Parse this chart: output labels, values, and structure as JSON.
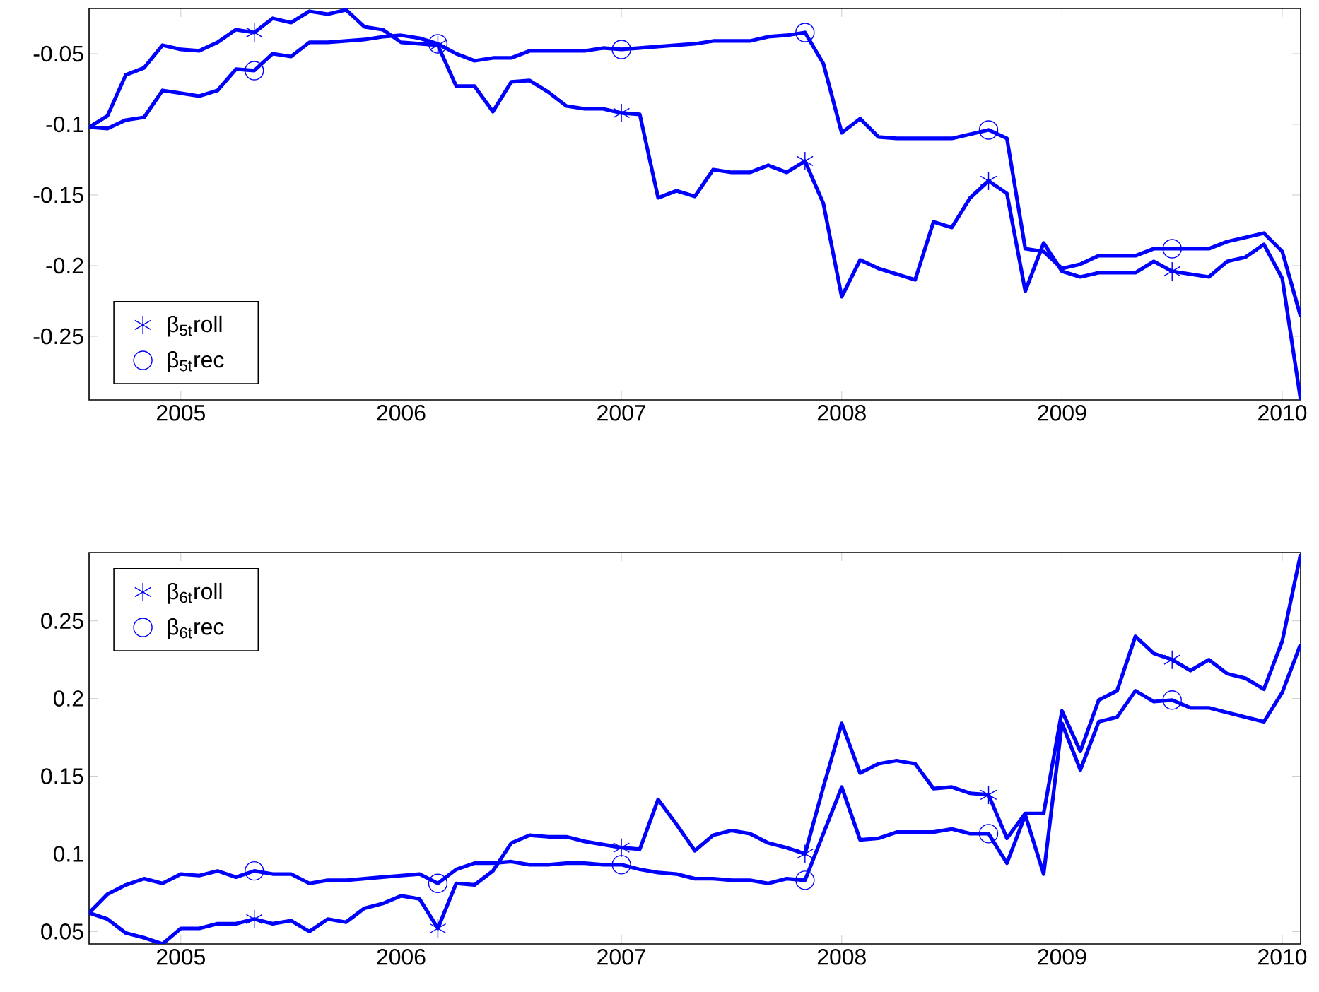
{
  "chart_data": [
    {
      "type": "line",
      "x": [
        "2004-08",
        "2004-09",
        "2004-10",
        "2004-11",
        "2004-12",
        "2005-01",
        "2005-02",
        "2005-03",
        "2005-04",
        "2005-05",
        "2005-06",
        "2005-07",
        "2005-08",
        "2005-09",
        "2005-10",
        "2005-11",
        "2005-12",
        "2006-01",
        "2006-02",
        "2006-03",
        "2006-04",
        "2006-05",
        "2006-06",
        "2006-07",
        "2006-08",
        "2006-09",
        "2006-10",
        "2006-11",
        "2006-12",
        "2007-01",
        "2007-02",
        "2007-03",
        "2007-04",
        "2007-05",
        "2007-06",
        "2007-07",
        "2007-08",
        "2007-09",
        "2007-10",
        "2007-11",
        "2007-12",
        "2008-01",
        "2008-02",
        "2008-03",
        "2008-04",
        "2008-05",
        "2008-06",
        "2008-07",
        "2008-08",
        "2008-09",
        "2008-10",
        "2008-11",
        "2008-12",
        "2009-01",
        "2009-02",
        "2009-03",
        "2009-04",
        "2009-05",
        "2009-06",
        "2009-07",
        "2009-08",
        "2009-09",
        "2009-10",
        "2009-11",
        "2009-12",
        "2010-01",
        "2010-02"
      ],
      "xlim": [
        "2004-08",
        "2010-02"
      ],
      "xticks": [
        "2005",
        "2006",
        "2007",
        "2008",
        "2009",
        "2010"
      ],
      "ylim": [
        -0.295,
        -0.018
      ],
      "yticks": [
        -0.25,
        -0.2,
        -0.15,
        -0.1,
        -0.05
      ],
      "legend": "bottom left",
      "series": [
        {
          "color": "#0000ff",
          "values": [
            -0.102,
            -0.094,
            -0.065,
            -0.06,
            -0.044,
            -0.047,
            -0.048,
            -0.042,
            -0.033,
            -0.035,
            -0.025,
            -0.028,
            -0.02,
            -0.022,
            -0.019,
            -0.031,
            -0.033,
            -0.042,
            -0.043,
            -0.044,
            -0.073,
            -0.073,
            -0.091,
            -0.07,
            -0.069,
            -0.077,
            -0.087,
            -0.089,
            -0.089,
            -0.092,
            -0.093,
            -0.152,
            -0.147,
            -0.151,
            -0.132,
            -0.134,
            -0.134,
            -0.129,
            -0.134,
            -0.126,
            -0.156,
            -0.222,
            -0.196,
            -0.202,
            -0.206,
            -0.21,
            -0.169,
            -0.173,
            -0.152,
            -0.14,
            -0.149,
            -0.218,
            -0.184,
            -0.204,
            -0.208,
            -0.205,
            -0.205,
            -0.205,
            -0.197,
            -0.204,
            -0.206,
            -0.208,
            -0.197,
            -0.194,
            -0.185,
            -0.209,
            -0.295
          ]
        },
        {
          "color": "#0000ff",
          "values": [
            -0.102,
            -0.103,
            -0.097,
            -0.095,
            -0.076,
            -0.078,
            -0.08,
            -0.076,
            -0.061,
            -0.062,
            -0.05,
            -0.052,
            -0.042,
            -0.042,
            -0.041,
            -0.04,
            -0.038,
            -0.037,
            -0.039,
            -0.043,
            -0.05,
            -0.055,
            -0.053,
            -0.053,
            -0.048,
            -0.048,
            -0.048,
            -0.048,
            -0.046,
            -0.047,
            -0.046,
            -0.045,
            -0.044,
            -0.043,
            -0.041,
            -0.041,
            -0.041,
            -0.038,
            -0.037,
            -0.035,
            -0.057,
            -0.106,
            -0.096,
            -0.109,
            -0.11,
            -0.11,
            -0.11,
            -0.11,
            -0.107,
            -0.104,
            -0.11,
            -0.188,
            -0.19,
            -0.202,
            -0.199,
            -0.193,
            -0.193,
            -0.193,
            -0.188,
            -0.188,
            -0.188,
            -0.188,
            -0.183,
            -0.18,
            -0.177,
            -0.19,
            -0.236
          ]
        },
        {
          "type": "scatter",
          "name": "β$_{5t}$roll",
          "color": "#0000ff",
          "marker": "cross",
          "x": [
            "2005-05",
            "2006-03",
            "2007-01",
            "2007-11",
            "2008-09",
            "2009-07"
          ],
          "values": [
            -0.035,
            -0.044,
            -0.092,
            -0.126,
            -0.14,
            -0.204
          ]
        },
        {
          "type": "scatter",
          "name": "β$_{5t}$rec",
          "color": "#0000ff",
          "marker": "circle",
          "x": [
            "2005-05",
            "2006-03",
            "2007-01",
            "2007-11",
            "2008-09",
            "2009-07"
          ],
          "values": [
            -0.062,
            -0.043,
            -0.047,
            -0.035,
            -0.104,
            -0.188
          ]
        }
      ]
    },
    {
      "type": "line",
      "x": [
        "2004-08",
        "2004-09",
        "2004-10",
        "2004-11",
        "2004-12",
        "2005-01",
        "2005-02",
        "2005-03",
        "2005-04",
        "2005-05",
        "2005-06",
        "2005-07",
        "2005-08",
        "2005-09",
        "2005-10",
        "2005-11",
        "2005-12",
        "2006-01",
        "2006-02",
        "2006-03",
        "2006-04",
        "2006-05",
        "2006-06",
        "2006-07",
        "2006-08",
        "2006-09",
        "2006-10",
        "2006-11",
        "2006-12",
        "2007-01",
        "2007-02",
        "2007-03",
        "2007-04",
        "2007-05",
        "2007-06",
        "2007-07",
        "2007-08",
        "2007-09",
        "2007-10",
        "2007-11",
        "2007-12",
        "2008-01",
        "2008-02",
        "2008-03",
        "2008-04",
        "2008-05",
        "2008-06",
        "2008-07",
        "2008-08",
        "2008-09",
        "2008-10",
        "2008-11",
        "2008-12",
        "2009-01",
        "2009-02",
        "2009-03",
        "2009-04",
        "2009-05",
        "2009-06",
        "2009-07",
        "2009-08",
        "2009-09",
        "2009-10",
        "2009-11",
        "2009-12",
        "2010-01",
        "2010-02"
      ],
      "xlim": [
        "2004-08",
        "2010-02"
      ],
      "xticks": [
        "2005",
        "2006",
        "2007",
        "2008",
        "2009",
        "2010"
      ],
      "ylim": [
        0.042,
        0.294
      ],
      "yticks": [
        0.05,
        0.1,
        0.15,
        0.2,
        0.25
      ],
      "legend": "top left",
      "series": [
        {
          "color": "#0000ff",
          "values": [
            0.062,
            0.058,
            0.049,
            0.046,
            0.042,
            0.052,
            0.052,
            0.055,
            0.055,
            0.058,
            0.055,
            0.057,
            0.05,
            0.058,
            0.056,
            0.065,
            0.068,
            0.073,
            0.071,
            0.052,
            0.081,
            0.08,
            0.089,
            0.107,
            0.112,
            0.111,
            0.111,
            0.108,
            0.106,
            0.104,
            0.103,
            0.135,
            0.119,
            0.102,
            0.112,
            0.115,
            0.113,
            0.107,
            0.104,
            0.1,
            0.143,
            0.184,
            0.152,
            0.158,
            0.16,
            0.158,
            0.142,
            0.143,
            0.139,
            0.138,
            0.11,
            0.126,
            0.126,
            0.192,
            0.166,
            0.199,
            0.205,
            0.24,
            0.229,
            0.225,
            0.218,
            0.225,
            0.216,
            0.213,
            0.206,
            0.237,
            0.293
          ]
        },
        {
          "color": "#0000ff",
          "values": [
            0.062,
            0.074,
            0.08,
            0.084,
            0.081,
            0.087,
            0.086,
            0.089,
            0.085,
            0.089,
            0.087,
            0.087,
            0.081,
            0.083,
            0.083,
            0.084,
            0.085,
            0.086,
            0.087,
            0.081,
            0.09,
            0.094,
            0.094,
            0.095,
            0.093,
            0.093,
            0.094,
            0.094,
            0.093,
            0.093,
            0.09,
            0.088,
            0.087,
            0.084,
            0.084,
            0.083,
            0.083,
            0.081,
            0.084,
            0.083,
            0.113,
            0.143,
            0.109,
            0.11,
            0.114,
            0.114,
            0.114,
            0.116,
            0.113,
            0.113,
            0.094,
            0.125,
            0.087,
            0.184,
            0.154,
            0.185,
            0.188,
            0.205,
            0.198,
            0.199,
            0.194,
            0.194,
            0.191,
            0.188,
            0.185,
            0.204,
            0.235
          ]
        },
        {
          "type": "scatter",
          "name": "β$_{6t}$roll",
          "color": "#0000ff",
          "marker": "cross",
          "x": [
            "2005-05",
            "2006-03",
            "2007-01",
            "2007-11",
            "2008-09",
            "2009-07"
          ],
          "values": [
            0.058,
            0.052,
            0.104,
            0.1,
            0.138,
            0.225
          ]
        },
        {
          "type": "scatter",
          "name": "β$_{6t}$rec",
          "color": "#0000ff",
          "marker": "circle",
          "x": [
            "2005-05",
            "2006-03",
            "2007-01",
            "2007-11",
            "2008-09",
            "2009-07"
          ],
          "values": [
            0.089,
            0.081,
            0.093,
            0.083,
            0.113,
            0.199
          ]
        }
      ]
    }
  ]
}
